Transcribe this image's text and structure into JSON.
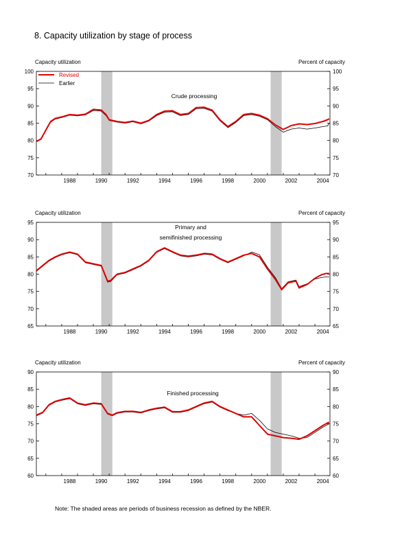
{
  "figure": {
    "title": "8.  Capacity utilization by stage of process",
    "note": "Note: The shaded areas are periods of business recession as defined by the NBER."
  },
  "colors": {
    "revised": "#e00000",
    "earlier": "#000000",
    "recession": "#c8c8c8"
  },
  "chart_data": [
    {
      "type": "line",
      "annotation": "Crude processing",
      "ylabel_left": "Capacity utilization",
      "ylabel_right": "Percent of capacity",
      "xlim": [
        1986.4,
        2004.95
      ],
      "ylim": [
        70,
        100
      ],
      "yticks": [
        70,
        75,
        80,
        85,
        90,
        95,
        100
      ],
      "xticks": [
        "1988",
        "1990",
        "1992",
        "1994",
        "1996",
        "1998",
        "2000",
        "2002",
        "2004"
      ],
      "legend": [
        "Revised",
        "Earlier"
      ],
      "legend_position": "top-left",
      "recessions": [
        [
          1990.5,
          1991.2
        ],
        [
          2001.2,
          2001.9
        ]
      ],
      "series": [
        {
          "name": "Revised",
          "x": [
            1986.4,
            1986.7,
            1987.0,
            1987.3,
            1987.6,
            1988.0,
            1988.5,
            1989.0,
            1989.5,
            1990.0,
            1990.5,
            1990.8,
            1991.0,
            1991.5,
            1992.0,
            1992.5,
            1993.0,
            1993.5,
            1994.0,
            1994.5,
            1995.0,
            1995.5,
            1996.0,
            1996.5,
            1997.0,
            1997.5,
            1998.0,
            1998.5,
            1999.0,
            1999.5,
            2000.0,
            2000.5,
            2001.0,
            2001.5,
            2002.0,
            2002.5,
            2003.0,
            2003.5,
            2004.0,
            2004.5,
            2004.8,
            2004.9
          ],
          "values": [
            79.7,
            80.5,
            83.0,
            85.5,
            86.4,
            86.8,
            87.5,
            87.3,
            87.6,
            89.0,
            88.8,
            87.5,
            86.0,
            85.5,
            85.2,
            85.6,
            85.0,
            85.8,
            87.5,
            88.5,
            88.6,
            87.5,
            87.8,
            89.5,
            89.6,
            88.8,
            86.0,
            84.0,
            85.5,
            87.5,
            87.8,
            87.3,
            86.3,
            84.5,
            83.2,
            84.3,
            84.8,
            84.6,
            84.9,
            85.5,
            86.0,
            86.3
          ]
        },
        {
          "name": "Earlier",
          "x": [
            1986.4,
            1986.7,
            1987.0,
            1987.3,
            1987.6,
            1988.0,
            1988.5,
            1989.0,
            1989.5,
            1990.0,
            1990.5,
            1990.8,
            1991.0,
            1991.5,
            1992.0,
            1992.5,
            1993.0,
            1993.5,
            1994.0,
            1994.5,
            1995.0,
            1995.5,
            1996.0,
            1996.5,
            1997.0,
            1997.5,
            1998.0,
            1998.5,
            1999.0,
            1999.5,
            2000.0,
            2000.5,
            2001.0,
            2001.5,
            2002.0,
            2002.5,
            2003.0,
            2003.5,
            2004.0,
            2004.5,
            2004.8,
            2004.9
          ],
          "values": [
            79.6,
            80.3,
            82.8,
            85.3,
            86.2,
            86.6,
            87.3,
            87.1,
            87.4,
            88.7,
            88.5,
            87.2,
            85.8,
            85.3,
            85.0,
            85.4,
            84.8,
            85.6,
            87.2,
            88.2,
            88.3,
            87.2,
            87.5,
            89.2,
            89.3,
            88.5,
            85.7,
            83.7,
            85.2,
            87.2,
            87.5,
            87.0,
            86.0,
            84.0,
            82.4,
            83.3,
            83.6,
            83.3,
            83.6,
            84.0,
            84.2,
            85.0
          ]
        }
      ]
    },
    {
      "type": "line",
      "annotation": "Primary and\nsemifinished processing",
      "ylabel_left": "Capacity utilization",
      "ylabel_right": "Percent of capacity",
      "xlim": [
        1986.4,
        2004.95
      ],
      "ylim": [
        65,
        95
      ],
      "yticks": [
        65,
        70,
        75,
        80,
        85,
        90,
        95
      ],
      "xticks": [
        "1988",
        "1990",
        "1992",
        "1994",
        "1996",
        "1998",
        "2000",
        "2002",
        "2004"
      ],
      "recessions": [
        [
          1990.5,
          1991.2
        ],
        [
          2001.2,
          2001.9
        ]
      ],
      "series": [
        {
          "name": "Revised",
          "x": [
            1986.4,
            1986.8,
            1987.2,
            1987.6,
            1988.0,
            1988.5,
            1989.0,
            1989.5,
            1990.0,
            1990.5,
            1990.9,
            1991.1,
            1991.5,
            1992.0,
            1992.5,
            1993.0,
            1993.5,
            1994.0,
            1994.5,
            1995.0,
            1995.5,
            1996.0,
            1996.5,
            1997.0,
            1997.5,
            1998.0,
            1998.5,
            1999.0,
            1999.5,
            2000.0,
            2000.5,
            2001.0,
            2001.5,
            2001.9,
            2002.3,
            2002.8,
            2003.0,
            2003.5,
            2004.0,
            2004.4,
            2004.7,
            2004.9
          ],
          "values": [
            81.0,
            82.5,
            84.0,
            85.0,
            85.8,
            86.4,
            85.8,
            83.5,
            83.0,
            82.5,
            78.0,
            78.2,
            80.0,
            80.5,
            81.5,
            82.5,
            84.0,
            86.5,
            87.6,
            86.5,
            85.5,
            85.2,
            85.5,
            86.0,
            85.8,
            84.5,
            83.5,
            84.5,
            85.5,
            86.0,
            85.0,
            81.5,
            78.5,
            75.5,
            77.5,
            78.0,
            76.0,
            77.0,
            78.8,
            79.8,
            80.2,
            80.2
          ]
        },
        {
          "name": "Earlier",
          "x": [
            1986.4,
            1986.8,
            1987.2,
            1987.6,
            1988.0,
            1988.5,
            1989.0,
            1989.5,
            1990.0,
            1990.5,
            1990.9,
            1991.1,
            1991.5,
            1992.0,
            1992.5,
            1993.0,
            1993.5,
            1994.0,
            1994.5,
            1995.0,
            1995.5,
            1996.0,
            1996.5,
            1997.0,
            1997.5,
            1998.0,
            1998.5,
            1999.0,
            1999.5,
            2000.0,
            2000.5,
            2001.0,
            2001.5,
            2001.9,
            2002.3,
            2002.8,
            2003.0,
            2003.5,
            2004.0,
            2004.4,
            2004.7,
            2004.9
          ],
          "values": [
            80.8,
            82.3,
            83.8,
            84.8,
            85.6,
            86.2,
            85.6,
            83.3,
            82.8,
            82.3,
            77.7,
            77.9,
            79.8,
            80.3,
            81.3,
            82.3,
            83.8,
            86.3,
            87.4,
            86.3,
            85.3,
            85.0,
            85.3,
            85.8,
            85.6,
            84.3,
            83.3,
            84.3,
            85.3,
            86.4,
            85.6,
            82.0,
            79.0,
            75.8,
            77.8,
            78.3,
            76.4,
            77.2,
            78.6,
            79.0,
            79.2,
            79.2
          ]
        }
      ]
    },
    {
      "type": "line",
      "annotation": "Finished processing",
      "ylabel_left": "Capacity utilization",
      "ylabel_right": "Percent of capacity",
      "xlim": [
        1986.4,
        2004.95
      ],
      "ylim": [
        60,
        90
      ],
      "yticks": [
        60,
        65,
        70,
        75,
        80,
        85,
        90
      ],
      "xticks": [
        "1988",
        "1990",
        "1992",
        "1994",
        "1996",
        "1998",
        "2000",
        "2002",
        "2004"
      ],
      "recessions": [
        [
          1990.5,
          1991.2
        ],
        [
          2001.2,
          2001.9
        ]
      ],
      "series": [
        {
          "name": "Revised",
          "x": [
            1986.4,
            1986.8,
            1987.2,
            1987.6,
            1988.0,
            1988.5,
            1989.0,
            1989.5,
            1990.0,
            1990.5,
            1990.9,
            1991.2,
            1991.5,
            1992.0,
            1992.5,
            1993.0,
            1993.5,
            1994.0,
            1994.5,
            1995.0,
            1995.5,
            1996.0,
            1996.5,
            1997.0,
            1997.5,
            1998.0,
            1998.5,
            1999.0,
            1999.5,
            2000.0,
            2000.5,
            2001.0,
            2001.5,
            2002.0,
            2002.5,
            2003.0,
            2003.5,
            2004.0,
            2004.5,
            2004.9
          ],
          "values": [
            77.5,
            78.3,
            80.5,
            81.5,
            82.0,
            82.5,
            81.0,
            80.5,
            81.0,
            80.8,
            78.0,
            77.5,
            78.2,
            78.6,
            78.6,
            78.3,
            79.0,
            79.5,
            79.8,
            78.5,
            78.5,
            79.0,
            80.0,
            81.0,
            81.5,
            80.0,
            79.0,
            78.0,
            77.0,
            77.0,
            74.5,
            72.0,
            71.5,
            71.0,
            70.8,
            70.5,
            71.5,
            73.0,
            74.5,
            75.5
          ]
        },
        {
          "name": "Earlier",
          "x": [
            1986.4,
            1986.8,
            1987.2,
            1987.6,
            1988.0,
            1988.5,
            1989.0,
            1989.5,
            1990.0,
            1990.5,
            1990.9,
            1991.2,
            1991.5,
            1992.0,
            1992.5,
            1993.0,
            1993.5,
            1994.0,
            1994.5,
            1995.0,
            1995.5,
            1996.0,
            1996.5,
            1997.0,
            1997.5,
            1998.0,
            1998.5,
            1999.0,
            1999.5,
            2000.0,
            2000.5,
            2001.0,
            2001.5,
            2002.0,
            2002.5,
            2003.0,
            2003.5,
            2004.0,
            2004.5,
            2004.9
          ],
          "values": [
            77.3,
            78.1,
            80.3,
            81.3,
            81.8,
            82.3,
            80.8,
            80.3,
            80.8,
            80.6,
            77.8,
            77.3,
            78.0,
            78.4,
            78.4,
            78.1,
            78.8,
            79.3,
            79.6,
            78.3,
            78.3,
            78.8,
            79.8,
            80.8,
            81.3,
            79.8,
            78.8,
            78.0,
            77.5,
            78.0,
            76.0,
            73.5,
            72.5,
            72.0,
            71.5,
            70.8,
            71.0,
            72.5,
            74.0,
            75.0
          ]
        }
      ]
    }
  ]
}
